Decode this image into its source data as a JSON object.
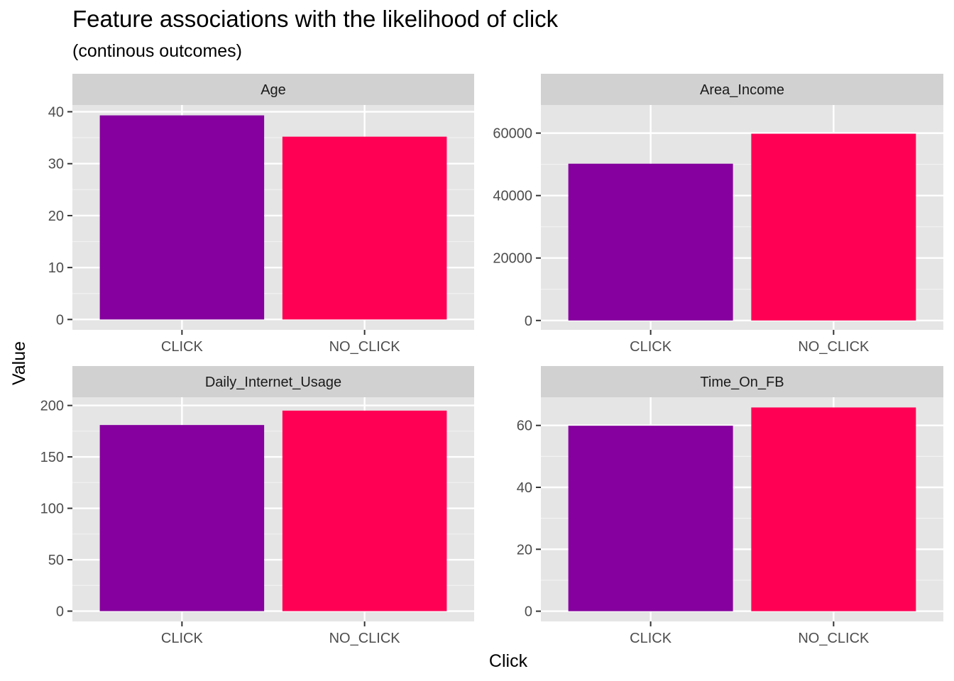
{
  "chart_data": {
    "type": "bar",
    "title": "Feature associations with the likelihood of click",
    "subtitle": "(continous outcomes)",
    "xlabel": "Click",
    "ylabel": "Value",
    "categories": [
      "CLICK",
      "NO_CLICK"
    ],
    "colors": {
      "CLICK": "#85009E",
      "NO_CLICK": "#FF0055"
    },
    "panel_background": "#E5E5E5",
    "strip_background": "#D1D1D1",
    "grid": true,
    "legend": "none",
    "facets": [
      {
        "name": "Age",
        "values": [
          39.3,
          35.2
        ],
        "ylim": [
          -2,
          41.3
        ],
        "yticks": [
          0,
          10,
          20,
          30,
          40
        ],
        "ytick_labels": [
          "0",
          "10",
          "20",
          "30",
          "40"
        ]
      },
      {
        "name": "Area_Income",
        "values": [
          50200,
          59800
        ],
        "ylim": [
          -3000,
          69000
        ],
        "yticks": [
          0,
          20000,
          40000,
          60000
        ],
        "ytick_labels": [
          "0",
          "20000",
          "40000",
          "60000"
        ]
      },
      {
        "name": "Daily_Internet_Usage",
        "values": [
          181,
          195
        ],
        "ylim": [
          -10,
          208
        ],
        "yticks": [
          0,
          50,
          100,
          150,
          200
        ],
        "ytick_labels": [
          "0",
          "50",
          "100",
          "150",
          "200"
        ]
      },
      {
        "name": "Time_On_FB",
        "values": [
          59.9,
          65.8
        ],
        "ylim": [
          -3.3,
          69.1
        ],
        "yticks": [
          0,
          20,
          40,
          60
        ],
        "ytick_labels": [
          "0",
          "20",
          "40",
          "60"
        ]
      }
    ]
  }
}
